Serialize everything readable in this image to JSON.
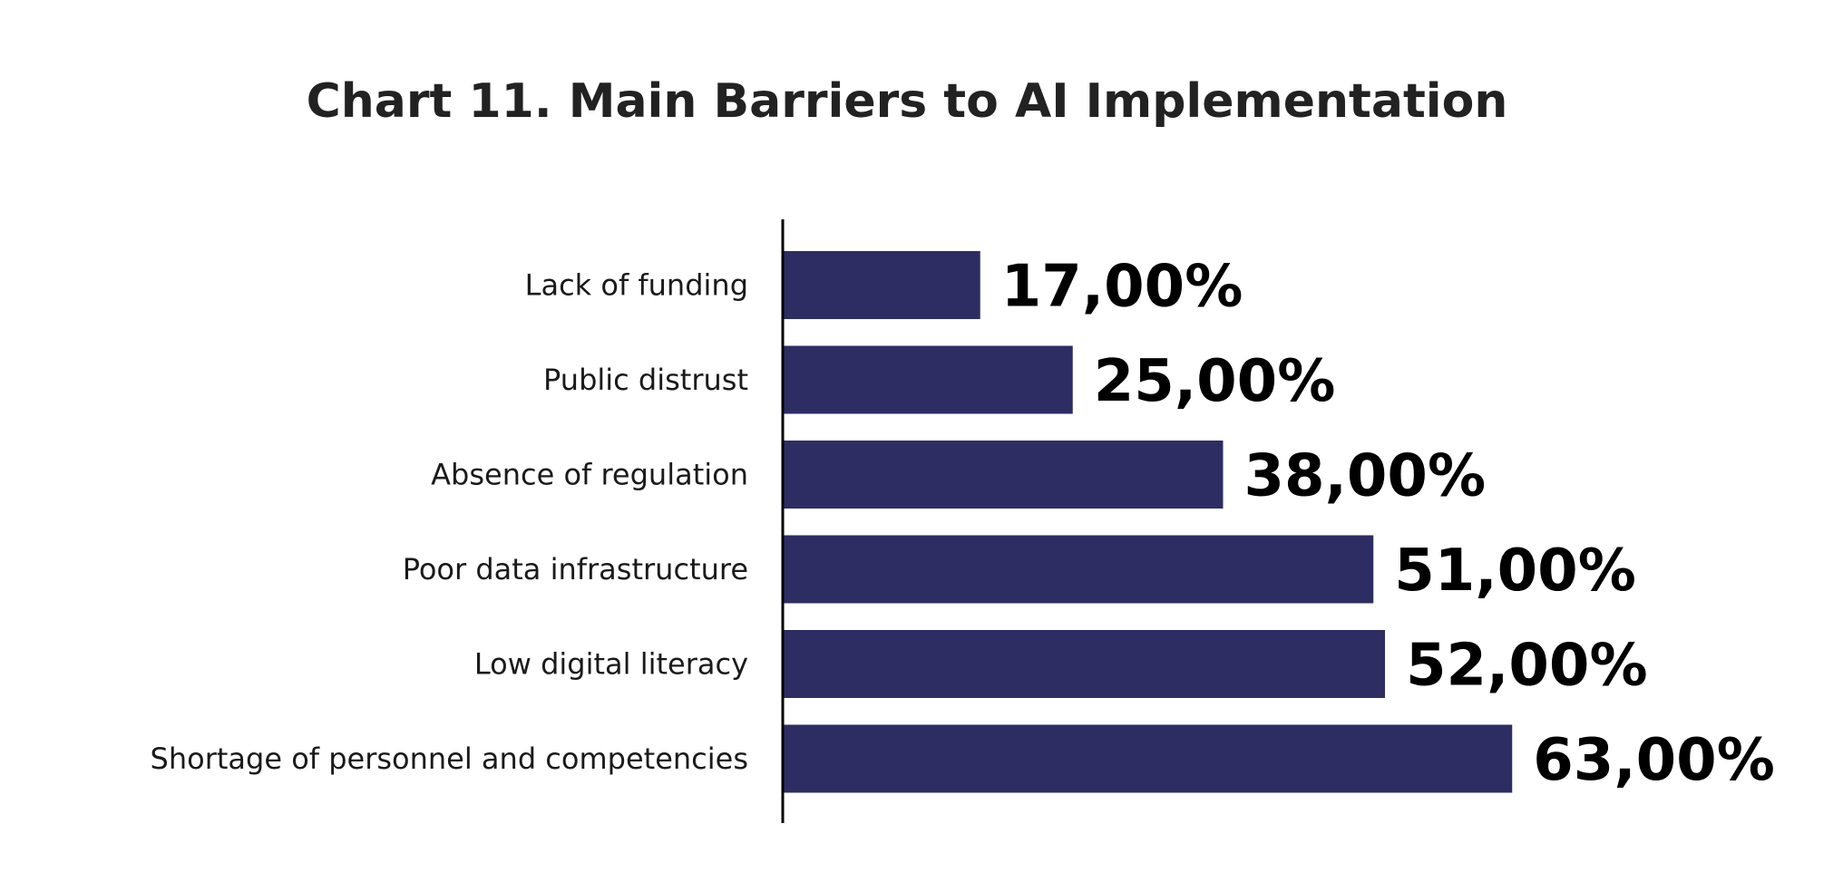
{
  "chart_data": {
    "type": "bar",
    "orientation": "horizontal",
    "title": "Chart 11. Main Barriers to AI Implementation",
    "categories": [
      "Lack of funding",
      "Public distrust",
      "Absence of regulation",
      "Poor data infrastructure",
      "Low digital literacy",
      "Shortage of personnel and competencies"
    ],
    "values": [
      17,
      25,
      38,
      51,
      52,
      63
    ],
    "value_labels": [
      "17,00%",
      "25,00%",
      "38,00%",
      "51,00%",
      "52,00%",
      "63,00%"
    ],
    "unit": "%",
    "xlim": [
      0,
      100
    ],
    "grid": false,
    "legend": "none",
    "bar_color": "#2e2d63",
    "axis_color": "#000000"
  }
}
